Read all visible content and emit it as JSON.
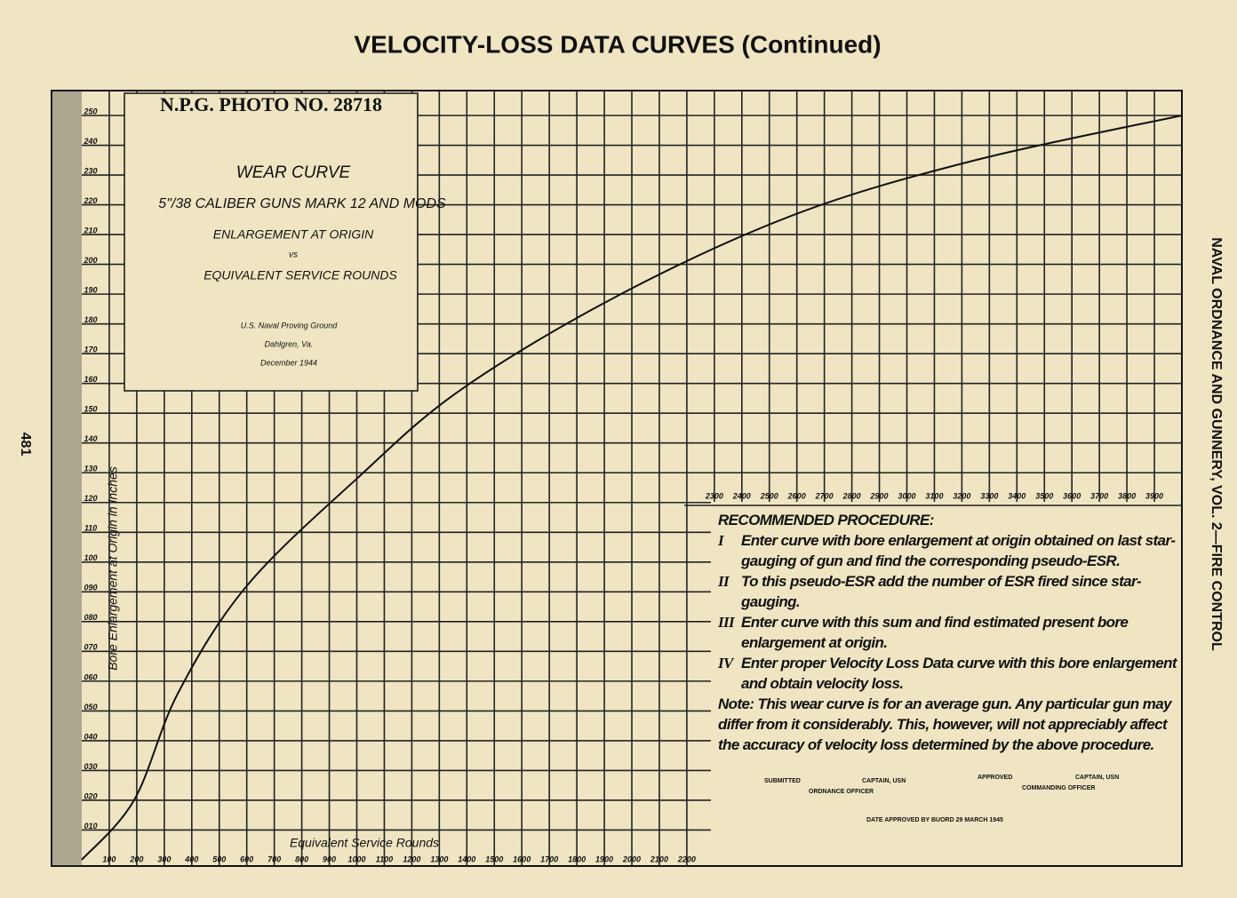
{
  "title": "VELOCITY-LOSS DATA CURVES (Continued)",
  "side_title": "NAVAL ORDNANCE AND GUNNERY, VOL. 2—FIRE CONTROL",
  "page_number": "481",
  "chart_data": {
    "type": "line",
    "photo_no": "N.P.G. PHOTO NO. 28718",
    "title": "WEAR CURVE",
    "subtitle": "5\"/38 CALIBER GUNS MARK 12 AND MODS",
    "caption_lines": [
      "ENLARGEMENT AT ORIGIN",
      "vs",
      "EQUIVALENT SERVICE ROUNDS"
    ],
    "source_lines": [
      "U.S. Naval Proving Ground",
      "Dahlgren, Va.",
      "December 1944"
    ],
    "xlabel": "Equivalent Service Rounds",
    "ylabel": "Bore Enlargement at Origin in Inches",
    "x": [
      0,
      190,
      350,
      600,
      1000,
      1380,
      1960,
      2600,
      3250,
      4000
    ],
    "series": [
      {
        "name": "Wear curve",
        "color": "#111111",
        "values": [
          0,
          0.02,
          0.056,
          0.092,
          0.128,
          0.158,
          0.19,
          0.217,
          0.235,
          0.25
        ]
      }
    ],
    "xlim": [
      0,
      4000
    ],
    "ylim": [
      0,
      0.25
    ],
    "xticks": [
      100,
      200,
      300,
      400,
      500,
      600,
      700,
      800,
      900,
      1000,
      1100,
      1200,
      1300,
      1400,
      1500,
      1600,
      1700,
      1800,
      1900,
      2000,
      2100,
      2200,
      2300,
      2400,
      2500,
      2600,
      2700,
      2800,
      2900,
      3000,
      3100,
      3200,
      3300,
      3400,
      3500,
      3600,
      3700,
      3800,
      3900
    ],
    "yticks": [
      {
        "value": 0.01,
        "label": "010"
      },
      {
        "value": 0.02,
        "label": "020"
      },
      {
        "value": 0.03,
        "label": "030"
      },
      {
        "value": 0.04,
        "label": "040"
      },
      {
        "value": 0.05,
        "label": "050"
      },
      {
        "value": 0.06,
        "label": "060"
      },
      {
        "value": 0.07,
        "label": "070"
      },
      {
        "value": 0.08,
        "label": "080"
      },
      {
        "value": 0.09,
        "label": "090"
      },
      {
        "value": 0.1,
        "label": "100"
      },
      {
        "value": 0.11,
        "label": "110"
      },
      {
        "value": 0.12,
        "label": "120"
      },
      {
        "value": 0.13,
        "label": "130"
      },
      {
        "value": 0.14,
        "label": "140"
      },
      {
        "value": 0.15,
        "label": "150"
      },
      {
        "value": 0.16,
        "label": "160"
      },
      {
        "value": 0.17,
        "label": "170"
      },
      {
        "value": 0.18,
        "label": "180"
      },
      {
        "value": 0.19,
        "label": "190"
      },
      {
        "value": 0.2,
        "label": "200"
      },
      {
        "value": 0.21,
        "label": "210"
      },
      {
        "value": 0.22,
        "label": "220"
      },
      {
        "value": 0.23,
        "label": "230"
      },
      {
        "value": 0.24,
        "label": "240"
      },
      {
        "value": 0.25,
        "label": "250"
      }
    ],
    "grid": true
  },
  "procedure": {
    "heading": "RECOMMENDED PROCEDURE:",
    "items": [
      {
        "numeral": "I",
        "text": "Enter curve with bore enlargement at origin obtained on last star-gauging of gun and find the corresponding pseudo-ESR."
      },
      {
        "numeral": "II",
        "text": "To this pseudo-ESR add the number of ESR fired since star-gauging."
      },
      {
        "numeral": "III",
        "text": "Enter curve with this sum and find estimated present bore enlargement at origin."
      },
      {
        "numeral": "IV",
        "text": "Enter proper Velocity Loss Data curve with this bore enlargement and obtain velocity loss."
      }
    ],
    "note": "Note: This wear curve is for an average gun. Any particular gun may differ from it considerably. This, however, will not appreciably affect the accuracy of velocity loss determined by the above procedure."
  },
  "signatures": {
    "submitted": "SUBMITTED",
    "submitted_rank": "CAPTAIN, USN",
    "submitted_title": "ORDNANCE OFFICER",
    "approved": "APPROVED",
    "approved_rank": "CAPTAIN, USN",
    "approved_title": "COMMANDING OFFICER",
    "date": "DATE APPROVED BY BUORD 29 MARCH 1945"
  }
}
